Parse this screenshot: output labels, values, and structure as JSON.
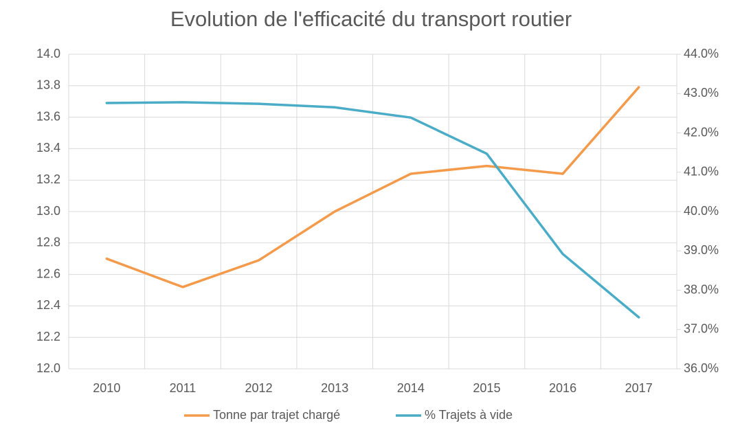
{
  "chart_data": {
    "type": "line",
    "title": "Evolution de l'efficacité du transport routier",
    "categories": [
      "2010",
      "2011",
      "2012",
      "2013",
      "2014",
      "2015",
      "2016",
      "2017"
    ],
    "series": [
      {
        "name": "Tonne par trajet chargé",
        "color": "#f39a4b",
        "values": [
          12.7,
          12.52,
          12.69,
          13.0,
          13.24,
          13.29,
          13.24,
          13.79
        ]
      },
      {
        "name": "% Trajets à vide",
        "color": "#4aacc6",
        "axis": "y2",
        "values": [
          42.76,
          42.78,
          42.74,
          42.65,
          42.39,
          41.47,
          38.92,
          37.31
        ]
      }
    ],
    "ylim": [
      12.0,
      14.0
    ],
    "yticks": [
      {
        "value": 12,
        "label": "12.0"
      },
      {
        "value": 12.2,
        "label": "12.2"
      },
      {
        "value": 12.4,
        "label": "12.4"
      },
      {
        "value": 12.6,
        "label": "12.6"
      },
      {
        "value": 12.8,
        "label": "12.8"
      },
      {
        "value": 13,
        "label": "13.0"
      },
      {
        "value": 13.2,
        "label": "13.2"
      },
      {
        "value": 13.4,
        "label": "13.4"
      },
      {
        "value": 13.6,
        "label": "13.6"
      },
      {
        "value": 13.8,
        "label": "13.8"
      },
      {
        "value": 14,
        "label": "14.0"
      }
    ],
    "y2lim": [
      36,
      44
    ],
    "y2ticks": [
      {
        "value": 36,
        "label": "36.0%"
      },
      {
        "value": 37,
        "label": "37.0%"
      },
      {
        "value": 38,
        "label": "38.0%"
      },
      {
        "value": 39,
        "label": "39.0%"
      },
      {
        "value": 40,
        "label": "40.0%"
      },
      {
        "value": 41,
        "label": "41.0%"
      },
      {
        "value": 42,
        "label": "42.0%"
      },
      {
        "value": 43,
        "label": "43.0%"
      },
      {
        "value": 44,
        "label": "44.0%"
      }
    ],
    "grid": true,
    "legend": "bottom"
  }
}
